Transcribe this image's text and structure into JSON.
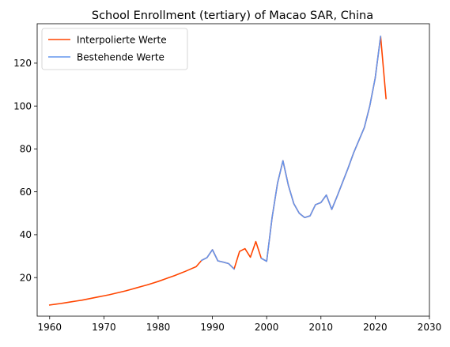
{
  "chart_data": {
    "type": "line",
    "title": "School Enrollment (tertiary) of Macao SAR, China",
    "xlabel": "",
    "ylabel": "",
    "xlim": [
      1957.7,
      2030
    ],
    "ylim": [
      2,
      138.4
    ],
    "x_ticks": [
      1960,
      1970,
      1980,
      1990,
      2000,
      2010,
      2020,
      2030
    ],
    "y_ticks": [
      20,
      40,
      60,
      80,
      100,
      120
    ],
    "grid": false,
    "legend_position": "top-left",
    "series": [
      {
        "name": "Interpolierte Werte",
        "color": "#ff4500",
        "points": [
          [
            1960,
            7.2
          ],
          [
            1961,
            7.55
          ],
          [
            1962,
            7.9
          ],
          [
            1963,
            8.3
          ],
          [
            1964,
            8.7
          ],
          [
            1965,
            9.1
          ],
          [
            1966,
            9.5
          ],
          [
            1967,
            10.0
          ],
          [
            1968,
            10.5
          ],
          [
            1969,
            11.0
          ],
          [
            1970,
            11.5
          ],
          [
            1971,
            12.0
          ],
          [
            1972,
            12.6
          ],
          [
            1973,
            13.2
          ],
          [
            1974,
            13.8
          ],
          [
            1975,
            14.5
          ],
          [
            1976,
            15.2
          ],
          [
            1977,
            15.9
          ],
          [
            1978,
            16.6
          ],
          [
            1979,
            17.4
          ],
          [
            1980,
            18.2
          ],
          [
            1981,
            19.1
          ],
          [
            1982,
            20.0
          ],
          [
            1983,
            20.9
          ],
          [
            1984,
            21.9
          ],
          [
            1985,
            22.9
          ],
          [
            1986,
            24.0
          ],
          [
            1987,
            25.1
          ],
          [
            1988,
            28.0
          ],
          [
            1989,
            29.3
          ],
          [
            1990,
            33.0
          ],
          [
            1991,
            27.8
          ],
          [
            1992,
            27.2
          ],
          [
            1993,
            26.5
          ],
          [
            1994,
            24.0
          ],
          [
            1995,
            32.2
          ],
          [
            1996,
            33.5
          ],
          [
            1997,
            29.5
          ],
          [
            1998,
            36.8
          ],
          [
            1999,
            29.0
          ],
          [
            2000,
            27.6
          ],
          [
            2001,
            48.0
          ],
          [
            2002,
            64.0
          ],
          [
            2003,
            74.5
          ],
          [
            2004,
            63.0
          ],
          [
            2005,
            54.5
          ],
          [
            2006,
            50.0
          ],
          [
            2007,
            48.0
          ],
          [
            2008,
            48.8
          ],
          [
            2009,
            54.0
          ],
          [
            2010,
            55.0
          ],
          [
            2011,
            58.5
          ],
          [
            2012,
            51.8
          ],
          [
            2013,
            58.0
          ],
          [
            2014,
            64.5
          ],
          [
            2015,
            71.0
          ],
          [
            2016,
            78.0
          ],
          [
            2017,
            84.0
          ],
          [
            2018,
            90.0
          ],
          [
            2019,
            100.0
          ],
          [
            2020,
            113.0
          ],
          [
            2021,
            132.5
          ],
          [
            2022,
            103.5
          ]
        ]
      },
      {
        "name": "Bestehende Werte",
        "color": "#6495ed",
        "points": [
          [
            1988,
            28.0
          ],
          [
            1989,
            29.3
          ],
          [
            1990,
            33.0
          ],
          [
            1991,
            27.8
          ],
          [
            1992,
            27.2
          ],
          [
            1993,
            26.5
          ],
          [
            1994,
            24.0
          ],
          [
            null,
            null
          ],
          [
            1999,
            29.0
          ],
          [
            2000,
            27.6
          ],
          [
            2001,
            48.0
          ],
          [
            2002,
            64.0
          ],
          [
            2003,
            74.5
          ],
          [
            2004,
            63.0
          ],
          [
            2005,
            54.5
          ],
          [
            2006,
            50.0
          ],
          [
            2007,
            48.0
          ],
          [
            2008,
            48.8
          ],
          [
            2009,
            54.0
          ],
          [
            2010,
            55.0
          ],
          [
            2011,
            58.5
          ],
          [
            2012,
            51.8
          ],
          [
            2013,
            58.0
          ],
          [
            2014,
            64.5
          ],
          [
            2015,
            71.0
          ],
          [
            2016,
            78.0
          ],
          [
            2017,
            84.0
          ],
          [
            2018,
            90.0
          ],
          [
            2019,
            100.0
          ],
          [
            2020,
            113.0
          ],
          [
            2021,
            132.5
          ]
        ]
      }
    ]
  }
}
